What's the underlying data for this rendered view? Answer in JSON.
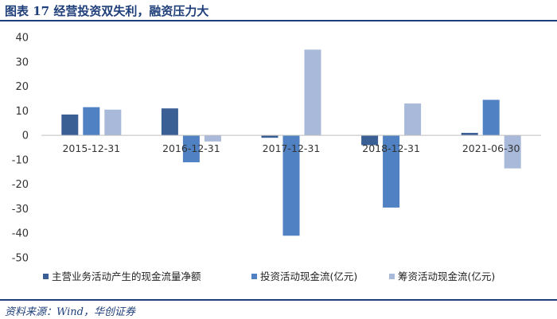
{
  "figure": {
    "title": "图表 17   经营投资双失利，融资压力大",
    "source": "资料来源：Wind，华创证券"
  },
  "colors": {
    "header": "#1f3f7a",
    "series": [
      "#3a5f95",
      "#4f81c3",
      "#a8b9d9"
    ]
  },
  "chart_data": {
    "type": "bar",
    "title": "",
    "xlabel": "",
    "ylabel": "",
    "categories": [
      "2015-12-31",
      "2016-12-31",
      "2017-12-31",
      "2018-12-31",
      "2021-06-30"
    ],
    "series": [
      {
        "name": "主营业务活动产生的现金流量净额",
        "values": [
          8.5,
          11,
          -1,
          -4,
          1
        ]
      },
      {
        "name": "投资活动现金流(亿元)",
        "values": [
          11.5,
          -11,
          -41,
          -29.5,
          14.5
        ]
      },
      {
        "name": "筹资活动现金流(亿元)",
        "values": [
          10.5,
          -2.5,
          35,
          13,
          -13.5
        ]
      }
    ],
    "ylim": [
      -50,
      40
    ],
    "yticks": [
      -50,
      -40,
      -30,
      -20,
      -10,
      0,
      10,
      20,
      30,
      40
    ],
    "grid": false,
    "legend": "bottom"
  }
}
